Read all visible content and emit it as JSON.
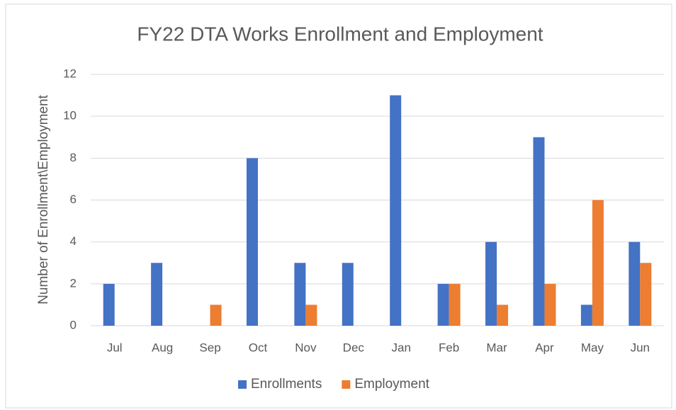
{
  "chart_data": {
    "type": "bar",
    "title": "FY22 DTA Works Enrollment and Employment",
    "y_label": "Number of Enrollment\\Employment",
    "categories": [
      "Jul",
      "Aug",
      "Sep",
      "Oct",
      "Nov",
      "Dec",
      "Jan",
      "Feb",
      "Mar",
      "Apr",
      "May",
      "Jun"
    ],
    "series": [
      {
        "name": "Enrollments",
        "color": "#4472c4",
        "values": [
          2,
          3,
          0,
          8,
          3,
          3,
          11,
          2,
          4,
          9,
          1,
          4
        ]
      },
      {
        "name": "Employment",
        "color": "#ed7d31",
        "values": [
          0,
          0,
          1,
          0,
          1,
          0,
          0,
          2,
          1,
          2,
          6,
          3
        ]
      }
    ],
    "ylim": [
      0,
      12
    ],
    "yticks": [
      0,
      2,
      4,
      6,
      8,
      10,
      12
    ],
    "grid": true,
    "legend": "bottom"
  }
}
